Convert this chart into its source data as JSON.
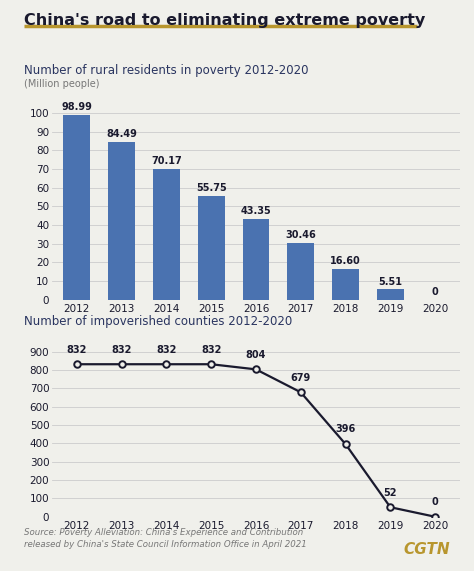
{
  "title": "China's road to eliminating extreme poverty",
  "bg_color": "#f0f0eb",
  "bar_subtitle": "Number of rural residents in poverty 2012-2020",
  "bar_unit": "(Million people)",
  "bar_years": [
    2012,
    2013,
    2014,
    2015,
    2016,
    2017,
    2018,
    2019,
    2020
  ],
  "bar_values": [
    98.99,
    84.49,
    70.17,
    55.75,
    43.35,
    30.46,
    16.6,
    5.51,
    0
  ],
  "bar_labels": [
    "98.99",
    "84.49",
    "70.17",
    "55.75",
    "43.35",
    "30.46",
    "16.60",
    "5.51",
    "0"
  ],
  "bar_color": "#4a72b0",
  "bar_ylim": [
    0,
    110
  ],
  "bar_yticks": [
    0,
    10,
    20,
    30,
    40,
    50,
    60,
    70,
    80,
    90,
    100
  ],
  "line_subtitle": "Number of impoverished counties 2012-2020",
  "line_years": [
    2012,
    2013,
    2014,
    2015,
    2016,
    2017,
    2018,
    2019,
    2020
  ],
  "line_values": [
    832,
    832,
    832,
    832,
    804,
    679,
    396,
    52,
    0
  ],
  "line_labels": [
    "832",
    "832",
    "832",
    "832",
    "804",
    "679",
    "396",
    "52",
    "0"
  ],
  "line_color": "#1a1a2e",
  "line_marker_fill": "#f0f0eb",
  "line_ylim": [
    0,
    950
  ],
  "line_yticks": [
    0,
    100,
    200,
    300,
    400,
    500,
    600,
    700,
    800,
    900
  ],
  "source_text": "Source: Poverty Alleviation: China's Experience and Contribution\nreleased by China's State Council Information Office in April 2021",
  "cgtn_text": "CGTN",
  "cgtn_color": "#b8962e",
  "title_underline_color": "#b8962e",
  "grid_color": "#cccccc",
  "text_color": "#1a1a2e",
  "subtitle_color": "#2a3560",
  "axis_label_color": "#777777",
  "bar_label_offset_y": [
    1.5,
    1.5,
    1.5,
    1.5,
    1.5,
    1.5,
    1.5,
    1.5,
    1.5
  ]
}
